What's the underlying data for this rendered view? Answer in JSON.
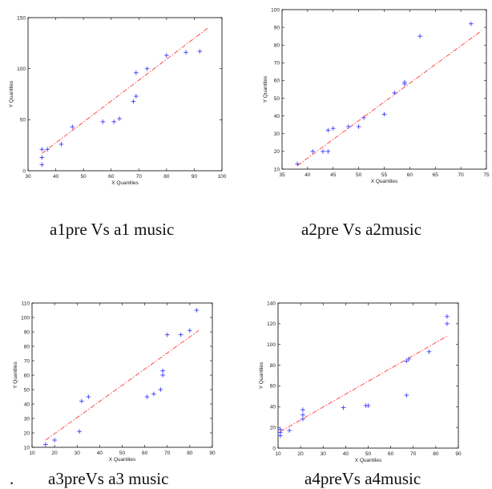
{
  "captions": [
    "a1pre Vs a1 music",
    "a2pre Vs a2music",
    "a3preVs a3 music",
    "a4preVs a4music"
  ],
  "bullet": ".",
  "colors": {
    "points": "#3b3bff",
    "fit_line": "#ff3b3b",
    "axes": "#000000"
  },
  "chart_data": [
    {
      "type": "scatter",
      "title": "",
      "xlabel": "X Quantiles",
      "ylabel": "Y Quantiles",
      "xlim": [
        30,
        100
      ],
      "ylim": [
        0,
        150
      ],
      "xticks": [
        30,
        40,
        50,
        60,
        70,
        80,
        90,
        100
      ],
      "yticks": [
        0,
        50,
        100,
        150
      ],
      "x": [
        35,
        35,
        35,
        37,
        42,
        46,
        57,
        61,
        63,
        68,
        69,
        69,
        73,
        80,
        87,
        92
      ],
      "y": [
        6,
        13,
        21,
        21,
        26,
        43,
        48,
        48,
        51,
        68,
        73,
        96,
        100,
        113,
        116,
        117
      ],
      "line": [
        [
          35,
          17
        ],
        [
          95,
          140
        ]
      ]
    },
    {
      "type": "scatter",
      "title": "",
      "xlabel": "X Quantiles",
      "ylabel": "Y Quantiles",
      "xlim": [
        35,
        75
      ],
      "ylim": [
        10,
        100
      ],
      "xticks": [
        35,
        40,
        45,
        50,
        55,
        60,
        65,
        70,
        75
      ],
      "yticks": [
        10,
        20,
        30,
        40,
        50,
        60,
        70,
        80,
        90,
        100
      ],
      "x": [
        38,
        41,
        43,
        44,
        44,
        45,
        48,
        50,
        51,
        55,
        57,
        59,
        59,
        62,
        72
      ],
      "y": [
        13,
        20,
        20,
        20,
        32,
        33,
        34,
        34,
        39,
        41,
        53,
        58,
        59,
        85,
        92
      ],
      "line": [
        [
          38,
          12
        ],
        [
          74,
          88
        ]
      ]
    },
    {
      "type": "scatter",
      "title": "",
      "xlabel": "X Quantiles",
      "ylabel": "Y Quantiles",
      "xlim": [
        10,
        90
      ],
      "ylim": [
        10,
        110
      ],
      "xticks": [
        10,
        20,
        30,
        40,
        50,
        60,
        70,
        80,
        90
      ],
      "yticks": [
        10,
        20,
        30,
        40,
        50,
        60,
        70,
        80,
        90,
        100,
        110
      ],
      "x": [
        16,
        20,
        31,
        32,
        35,
        61,
        64,
        67,
        68,
        68,
        70,
        76,
        80,
        83
      ],
      "y": [
        12,
        15,
        21,
        42,
        45,
        45,
        47,
        50,
        60,
        63,
        88,
        88,
        91,
        105
      ],
      "line": [
        [
          16,
          15
        ],
        [
          84,
          91
        ]
      ]
    },
    {
      "type": "scatter",
      "title": "",
      "xlabel": "X Quantiles",
      "ylabel": "Y Quantiles",
      "xlim": [
        10,
        90
      ],
      "ylim": [
        0,
        140
      ],
      "xticks": [
        10,
        20,
        30,
        40,
        50,
        60,
        70,
        80,
        90
      ],
      "yticks": [
        0,
        20,
        40,
        60,
        80,
        100,
        120,
        140
      ],
      "x": [
        11,
        11,
        11,
        15,
        21,
        21,
        21,
        39,
        49,
        50,
        67,
        67,
        68,
        77,
        85,
        85
      ],
      "y": [
        12,
        15,
        18,
        17,
        28,
        32,
        37,
        39,
        41,
        41,
        51,
        84,
        86,
        93,
        120,
        127
      ],
      "line": [
        [
          11,
          16
        ],
        [
          85,
          108
        ]
      ]
    }
  ]
}
